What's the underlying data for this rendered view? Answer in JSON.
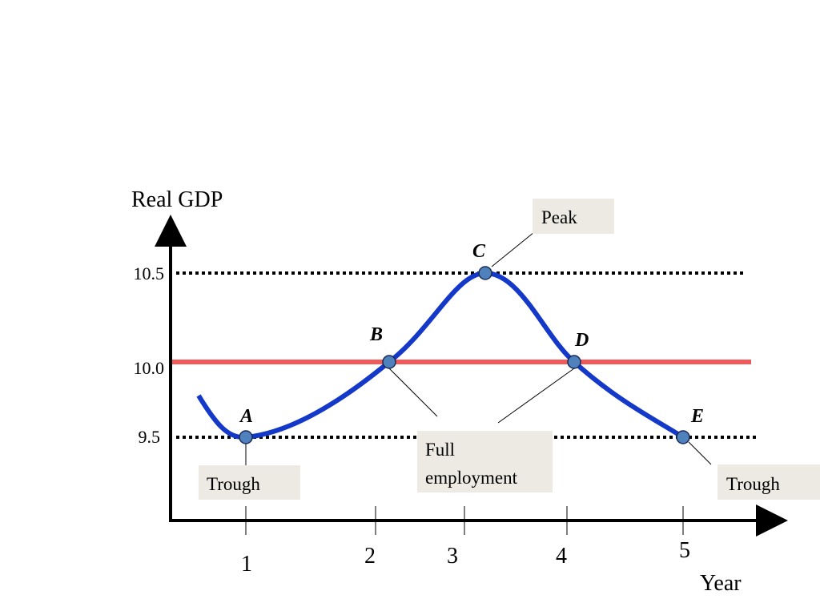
{
  "axes": {
    "y_label": "Real GDP",
    "x_label": "Year",
    "y_ticks": [
      "10.5",
      "10.0",
      "9.5"
    ],
    "x_ticks": [
      "1",
      "2",
      "3",
      "4",
      "5"
    ]
  },
  "points": [
    "A",
    "B",
    "C",
    "D",
    "E"
  ],
  "callouts": {
    "peak": "Peak",
    "trough_left": "Trough",
    "trough_right": "Trough",
    "full_employment": [
      "Full",
      "employment"
    ]
  }
}
